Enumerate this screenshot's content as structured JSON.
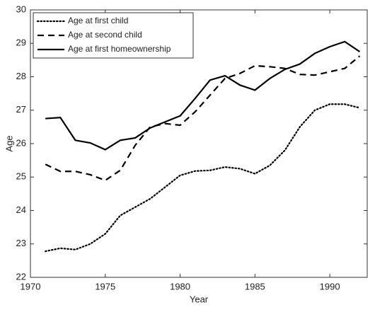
{
  "chart_data": {
    "type": "line",
    "xlabel": "Year",
    "ylabel": "Age",
    "x": [
      1971,
      1972,
      1973,
      1974,
      1975,
      1976,
      1977,
      1978,
      1979,
      1980,
      1981,
      1982,
      1983,
      1984,
      1985,
      1986,
      1987,
      1988,
      1989,
      1990,
      1991,
      1992
    ],
    "series": [
      {
        "name": "Age at first child",
        "color": "#000000",
        "dash": "dotted",
        "values": [
          22.78,
          22.87,
          22.83,
          23.0,
          23.3,
          23.85,
          24.1,
          24.35,
          24.7,
          25.05,
          25.18,
          25.2,
          25.3,
          25.25,
          25.1,
          25.35,
          25.8,
          26.5,
          27.0,
          27.18,
          27.18,
          27.07
        ]
      },
      {
        "name": "Age at second child",
        "color": "#000000",
        "dash": "dashed",
        "values": [
          25.38,
          25.17,
          25.17,
          25.07,
          24.9,
          25.2,
          25.95,
          26.5,
          26.6,
          26.55,
          26.95,
          27.45,
          27.95,
          28.1,
          28.33,
          28.3,
          28.25,
          28.07,
          28.05,
          28.15,
          28.25,
          28.62
        ]
      },
      {
        "name": "Age at first homeownership",
        "color": "#000000",
        "dash": "solid",
        "values": [
          26.75,
          26.78,
          26.1,
          26.02,
          25.82,
          26.1,
          26.17,
          26.47,
          26.65,
          26.83,
          27.35,
          27.9,
          28.03,
          27.75,
          27.6,
          27.95,
          28.22,
          28.38,
          28.7,
          28.9,
          29.05,
          28.75
        ]
      }
    ],
    "xlim": [
      1970,
      1992.5
    ],
    "xticks": [
      1970,
      1975,
      1980,
      1985,
      1990
    ],
    "ylim": [
      22,
      30
    ],
    "yticks": [
      22,
      23,
      24,
      25,
      26,
      27,
      28,
      29,
      30
    ],
    "grid": false,
    "legend": "upper-left"
  }
}
